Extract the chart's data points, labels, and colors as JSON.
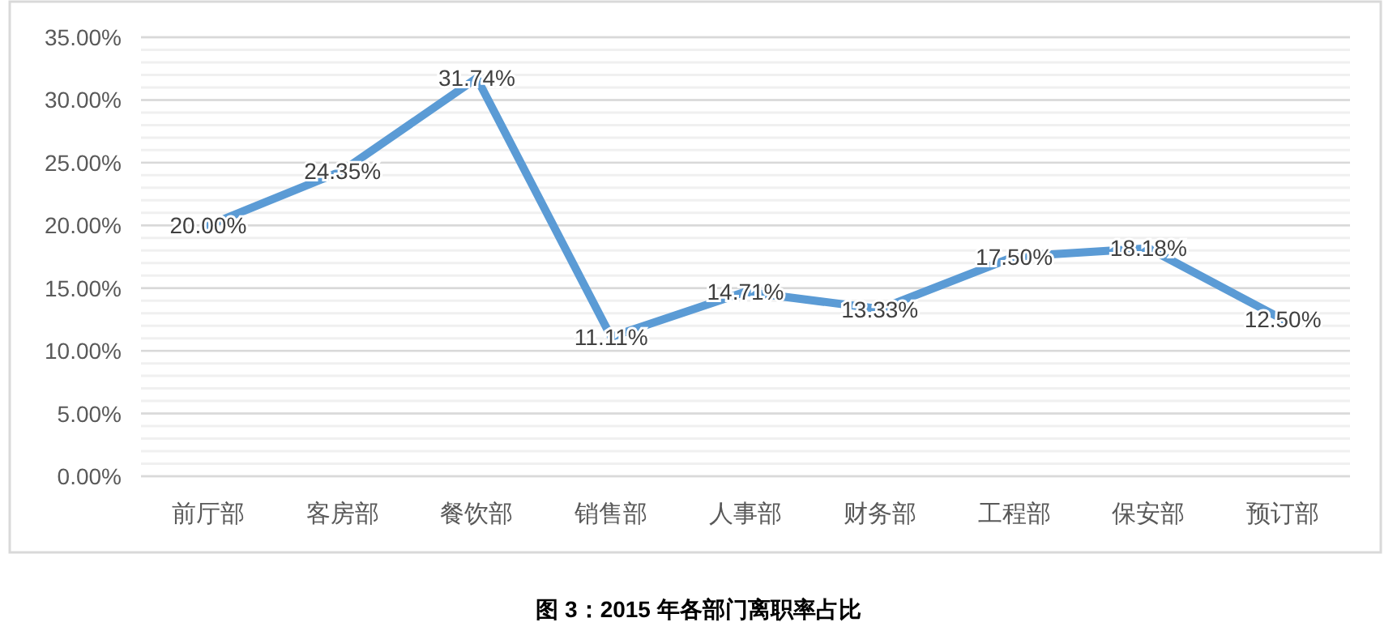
{
  "chart_data": {
    "type": "line",
    "annotations": [
      "图 3：2015 年各部门离职率占比"
    ],
    "categories": [
      "前厅部",
      "客房部",
      "餐饮部",
      "销售部",
      "人事部",
      "财务部",
      "工程部",
      "保安部",
      "预订部"
    ],
    "series": [
      {
        "color": "#5b9bd5",
        "values": [
          20.0,
          24.35,
          31.74,
          11.11,
          14.71,
          13.33,
          17.5,
          18.18,
          12.5
        ],
        "value_labels": [
          "20.00%",
          "24.35%",
          "31.74%",
          "11.11%",
          "14.71%",
          "13.33%",
          "17.50%",
          "18.18%",
          "12.50%"
        ]
      }
    ],
    "ylim": [
      0,
      35
    ],
    "yticks": [
      {
        "value": 0,
        "label": "0.00%"
      },
      {
        "value": 5,
        "label": "5.00%"
      },
      {
        "value": 10,
        "label": "10.00%"
      },
      {
        "value": 15,
        "label": "15.00%"
      },
      {
        "value": 20,
        "label": "20.00%"
      },
      {
        "value": 25,
        "label": "25.00%"
      },
      {
        "value": 30,
        "label": "30.00%"
      },
      {
        "value": 35,
        "label": "35.00%"
      }
    ],
    "grid": "y",
    "marker": "none",
    "line_style": "solid"
  }
}
